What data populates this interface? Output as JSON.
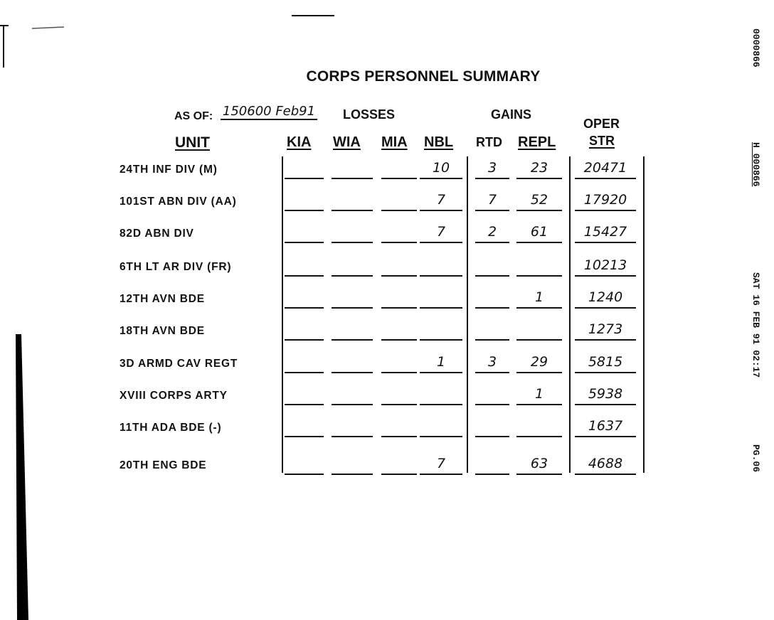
{
  "title": "CORPS PERSONNEL SUMMARY",
  "as_of_label": "AS OF:",
  "as_of_value": "150600 Feb91",
  "group_headers": {
    "losses": "LOSSES",
    "gains": "GAINS",
    "oper": "OPER"
  },
  "columns": {
    "unit": "UNIT",
    "kia": "KIA",
    "wia": "WIA",
    "mia": "MIA",
    "nbl": "NBL",
    "rtd": "RTD",
    "repl": "REPL",
    "str": "STR"
  },
  "rows": [
    {
      "unit": "24TH INF DIV (M)",
      "kia": "",
      "wia": "",
      "mia": "",
      "nbl": "10",
      "rtd": "3",
      "repl": "23",
      "oper_str": "20471"
    },
    {
      "unit": "101ST ABN DIV (AA)",
      "kia": "",
      "wia": "",
      "mia": "",
      "nbl": "7",
      "rtd": "7",
      "repl": "52",
      "oper_str": "17920"
    },
    {
      "unit": "82D ABN DIV",
      "kia": "",
      "wia": "",
      "mia": "",
      "nbl": "7",
      "rtd": "2",
      "repl": "61",
      "oper_str": "15427"
    },
    {
      "unit": "6TH LT AR DIV (FR)",
      "kia": "",
      "wia": "",
      "mia": "",
      "nbl": "",
      "rtd": "",
      "repl": "",
      "oper_str": "10213"
    },
    {
      "unit": "12TH AVN BDE",
      "kia": "",
      "wia": "",
      "mia": "",
      "nbl": "",
      "rtd": "",
      "repl": "1",
      "oper_str": "1240"
    },
    {
      "unit": "18TH AVN BDE",
      "kia": "",
      "wia": "",
      "mia": "",
      "nbl": "",
      "rtd": "",
      "repl": "",
      "oper_str": "1273"
    },
    {
      "unit": "3D ARMD CAV REGT",
      "kia": "",
      "wia": "",
      "mia": "",
      "nbl": "1",
      "rtd": "3",
      "repl": "29",
      "oper_str": "5815"
    },
    {
      "unit": "XVIII CORPS ARTY",
      "kia": "",
      "wia": "",
      "mia": "",
      "nbl": "",
      "rtd": "",
      "repl": "1",
      "oper_str": "5938"
    },
    {
      "unit": "11TH ADA BDE (-)",
      "kia": "",
      "wia": "",
      "mia": "",
      "nbl": "",
      "rtd": "",
      "repl": "",
      "oper_str": "1637"
    },
    {
      "unit": "20TH ENG BDE",
      "kia": "",
      "wia": "",
      "mia": "",
      "nbl": "7",
      "rtd": "",
      "repl": "63",
      "oper_str": "4688"
    }
  ],
  "margin": {
    "doc_number": "0000866",
    "h_number": "H 000866",
    "timestamp": "SAT 16 FEB 91 02:17",
    "page": "PG.06"
  }
}
